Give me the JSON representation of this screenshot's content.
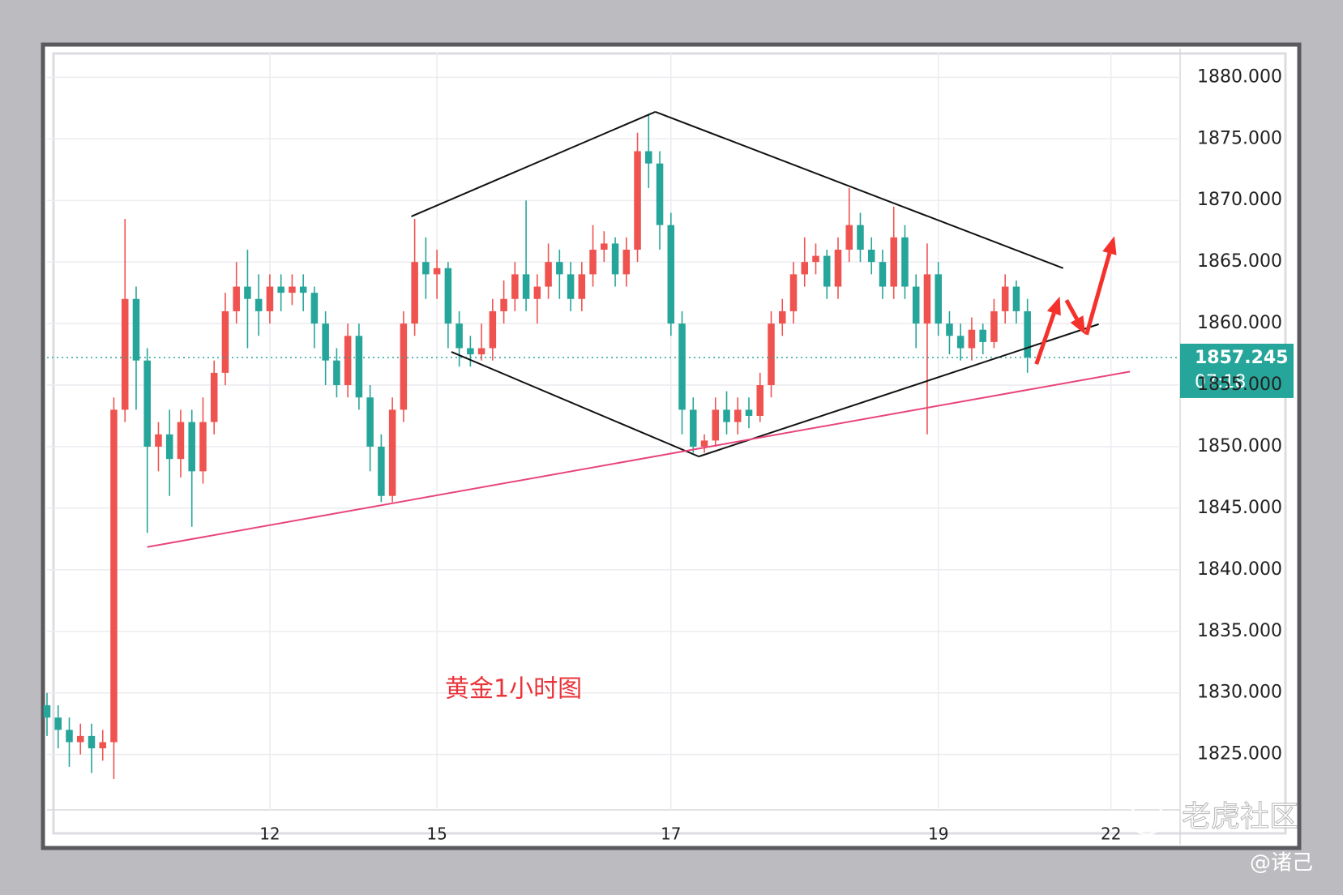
{
  "chart_data": {
    "type": "candlestick",
    "up_color": "#ef5350",
    "down_color": "#26a69a",
    "x": [
      0,
      1,
      2,
      3,
      4,
      5,
      6,
      7,
      8,
      9,
      10,
      11,
      12,
      13,
      14,
      15,
      16,
      17,
      18,
      19,
      20,
      21,
      22,
      23,
      24,
      25,
      26,
      27,
      28,
      29,
      30,
      31,
      32,
      33,
      34,
      35,
      36,
      37,
      38,
      39,
      40,
      41,
      42,
      43,
      44,
      45,
      46,
      47,
      48,
      49,
      50,
      51,
      52,
      53,
      54,
      55,
      56,
      57,
      58,
      59,
      60,
      61,
      62,
      63,
      64,
      65,
      66,
      67,
      68,
      69,
      70,
      71,
      72,
      73,
      74,
      75,
      76,
      77,
      78,
      79,
      80,
      81,
      82,
      83,
      84,
      85,
      86,
      87,
      88
    ],
    "open": [
      1829,
      1828,
      1827,
      1826,
      1826.5,
      1825.5,
      1826,
      1853,
      1862,
      1857,
      1850,
      1851,
      1849,
      1852,
      1848,
      1852,
      1856,
      1861,
      1863,
      1862,
      1861,
      1863,
      1862.5,
      1863,
      1862.5,
      1860,
      1857,
      1855,
      1859,
      1854,
      1850,
      1846,
      1853,
      1860,
      1865,
      1864,
      1864.5,
      1860,
      1858,
      1857.5,
      1858,
      1861,
      1862,
      1864,
      1862,
      1863,
      1865,
      1864,
      1862,
      1864,
      1866,
      1866.5,
      1864,
      1866,
      1874,
      1873,
      1868,
      1860,
      1853,
      1850,
      1850.5,
      1853,
      1852,
      1853,
      1852.5,
      1855,
      1860,
      1861,
      1864,
      1865,
      1865.5,
      1863,
      1866,
      1868,
      1866,
      1865,
      1863,
      1867,
      1863,
      1860,
      1864,
      1860,
      1859,
      1858,
      1859.5,
      1858.5,
      1861,
      1863,
      1861
    ],
    "high": [
      1830,
      1829,
      1828,
      1827.5,
      1827.5,
      1827,
      1854,
      1868.5,
      1863,
      1858,
      1852,
      1853,
      1853,
      1853,
      1854,
      1857,
      1862.5,
      1865,
      1866,
      1864,
      1864,
      1864,
      1864,
      1864,
      1863,
      1861,
      1858,
      1860,
      1860,
      1855,
      1851,
      1854,
      1861,
      1868.5,
      1867,
      1866,
      1865,
      1861,
      1859,
      1860,
      1862,
      1863.5,
      1865,
      1870,
      1864,
      1866.5,
      1866,
      1865,
      1865,
      1868,
      1867.5,
      1867,
      1867,
      1875.5,
      1877,
      1874,
      1869,
      1861,
      1854,
      1851,
      1854,
      1854.5,
      1854,
      1854,
      1856,
      1861,
      1862,
      1865,
      1867,
      1866.5,
      1866,
      1867,
      1871,
      1869,
      1867,
      1866,
      1869.5,
      1868,
      1864,
      1866.5,
      1865,
      1861,
      1860,
      1860.5,
      1860,
      1862,
      1864,
      1863.5,
      1862
    ],
    "low": [
      1826.5,
      1825.5,
      1824,
      1825,
      1823.5,
      1824.5,
      1823,
      1852,
      1853,
      1843,
      1848,
      1846,
      1847.5,
      1843.5,
      1847,
      1851,
      1855,
      1860,
      1858,
      1859,
      1860,
      1861,
      1861.5,
      1861,
      1858,
      1855,
      1854,
      1854,
      1853,
      1848,
      1845.5,
      1845.5,
      1852,
      1859,
      1862,
      1862,
      1858,
      1856.5,
      1856.5,
      1857,
      1857,
      1860,
      1861,
      1861,
      1860,
      1862,
      1862,
      1861,
      1861,
      1863,
      1865,
      1863,
      1863,
      1865,
      1871,
      1866,
      1859,
      1851,
      1849.5,
      1849.5,
      1850,
      1851,
      1851,
      1851.5,
      1852,
      1854,
      1859,
      1860,
      1863,
      1864,
      1862,
      1862,
      1865,
      1865,
      1864,
      1862,
      1862,
      1862,
      1858,
      1851,
      1859,
      1857.5,
      1857,
      1857,
      1857.5,
      1858,
      1860,
      1860,
      1856
    ],
    "close": [
      1828,
      1827,
      1826,
      1826.5,
      1825.5,
      1826,
      1853,
      1862,
      1857,
      1850,
      1851,
      1849,
      1852,
      1848,
      1852,
      1856,
      1861,
      1863,
      1862,
      1861,
      1863,
      1862.5,
      1863,
      1862.5,
      1860,
      1857,
      1855,
      1859,
      1854,
      1850,
      1846,
      1853,
      1860,
      1865,
      1864,
      1864.5,
      1860,
      1858,
      1857.5,
      1858,
      1861,
      1862,
      1864,
      1862,
      1863,
      1865,
      1864,
      1862,
      1864,
      1866,
      1866.5,
      1864,
      1866,
      1874,
      1873,
      1868,
      1860,
      1853,
      1850,
      1850.5,
      1853,
      1852,
      1853,
      1852.5,
      1855,
      1860,
      1861,
      1864,
      1865,
      1865.5,
      1863,
      1866,
      1868,
      1866,
      1865,
      1863,
      1867,
      1863,
      1860,
      1864,
      1860,
      1859,
      1858,
      1859.5,
      1858.5,
      1861,
      1863,
      1861,
      1857.245
    ],
    "xlim": [
      0,
      101.7
    ],
    "ylim": [
      1820.5,
      1882
    ],
    "yticks": [
      {
        "value": 1880,
        "label": "1880.000"
      },
      {
        "value": 1875,
        "label": "1875.000"
      },
      {
        "value": 1870,
        "label": "1870.000"
      },
      {
        "value": 1865,
        "label": "1865.000"
      },
      {
        "value": 1860,
        "label": "1860.000"
      },
      {
        "value": 1855,
        "label": "1855.000"
      },
      {
        "value": 1850,
        "label": "1850.000"
      },
      {
        "value": 1845,
        "label": "1845.000"
      },
      {
        "value": 1840,
        "label": "1840.000"
      },
      {
        "value": 1835,
        "label": "1835.000"
      },
      {
        "value": 1830,
        "label": "1830.000"
      },
      {
        "value": 1825,
        "label": "1825.000"
      }
    ],
    "xticks": [
      {
        "value": 20,
        "label": "12"
      },
      {
        "value": 35,
        "label": "15"
      },
      {
        "value": 56,
        "label": "17"
      },
      {
        "value": 80,
        "label": "19"
      },
      {
        "value": 95.5,
        "label": "22"
      }
    ],
    "grid": true,
    "countdown": "07:18",
    "annotation": "黄金1小时图",
    "trendlines": [
      {
        "color": "#111111",
        "points": [
          [
            32.7,
            1868.7
          ],
          [
            54.6,
            1877.2
          ]
        ]
      },
      {
        "color": "#111111",
        "points": [
          [
            54.6,
            1877.2
          ],
          [
            91.2,
            1864.5
          ]
        ]
      },
      {
        "color": "#111111",
        "points": [
          [
            36.3,
            1857.7
          ],
          [
            58.5,
            1849.2
          ]
        ]
      },
      {
        "color": "#111111",
        "points": [
          [
            58.5,
            1849.2
          ],
          [
            94.4,
            1859.95
          ]
        ]
      },
      {
        "color": "#e8457a",
        "points": [
          [
            9.0,
            1841.85
          ],
          [
            97.2,
            1856.1
          ]
        ]
      }
    ],
    "arrows": [
      {
        "color": "#f5312c",
        "points": [
          [
            88.8,
            1856.7
          ],
          [
            90.9,
            1862.2
          ]
        ]
      },
      {
        "color": "#f5312c",
        "points": [
          [
            91.5,
            1861.9
          ],
          [
            93.2,
            1859.1
          ]
        ]
      },
      {
        "color": "#f5312c",
        "points": [
          [
            93.3,
            1859.1
          ],
          [
            95.8,
            1867.1
          ]
        ]
      }
    ]
  },
  "watermark": "老虎社区",
  "author": "@诸己"
}
